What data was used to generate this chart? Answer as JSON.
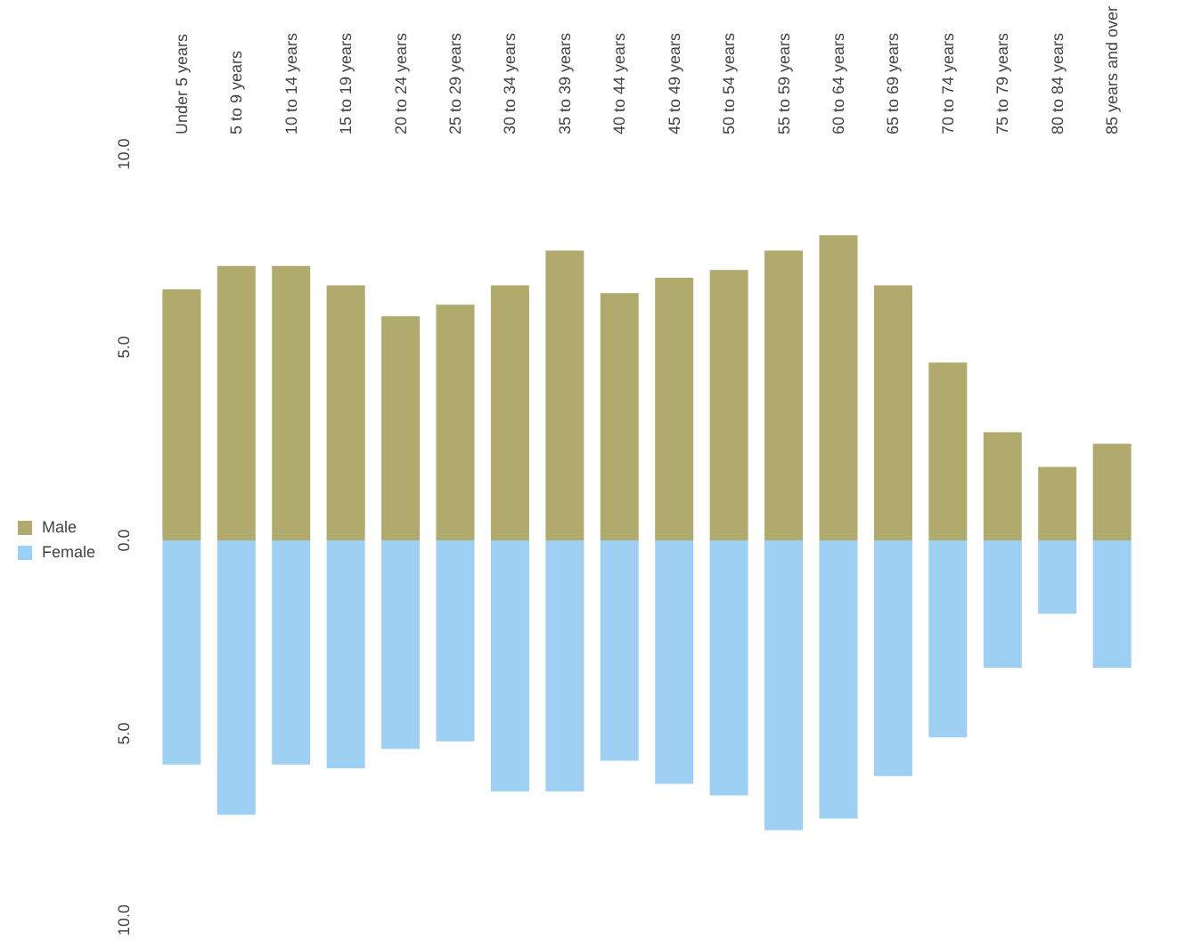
{
  "chart_data": {
    "type": "bar",
    "stacked": true,
    "categories": [
      "Under 5 years",
      "5 to 9 years",
      "10 to 14 years",
      "15 to 19 years",
      "20 to 24 years",
      "25 to 29 years",
      "30 to 34 years",
      "35 to 39 years",
      "40 to 44 years",
      "45 to 49 years",
      "50 to 54 years",
      "55 to 59 years",
      "60 to 64 years",
      "65 to 69 years",
      "70 to 74 years",
      "75 to 79 years",
      "80 to 84 years",
      "85 years and over"
    ],
    "series": [
      {
        "name": "Male",
        "color": "#b0aa6c",
        "values": [
          6.5,
          7.1,
          7.1,
          6.6,
          5.8,
          6.1,
          6.6,
          7.5,
          6.4,
          6.8,
          7.0,
          7.5,
          7.9,
          6.6,
          4.6,
          2.8,
          1.9,
          2.5
        ]
      },
      {
        "name": "Female",
        "color": "#9dd0f3",
        "values": [
          -5.8,
          -7.1,
          -5.8,
          -5.9,
          -5.4,
          -5.2,
          -6.5,
          -6.5,
          -5.7,
          -6.3,
          -6.6,
          -7.5,
          -7.2,
          -6.1,
          -5.1,
          -3.3,
          -1.9,
          -3.3
        ]
      }
    ],
    "ylim": [
      -10,
      10
    ],
    "yticks": [
      {
        "value": -10,
        "label": "10.0"
      },
      {
        "value": -5,
        "label": "5.0"
      },
      {
        "value": 0,
        "label": "0.0"
      },
      {
        "value": 5,
        "label": "5.0"
      },
      {
        "value": 10,
        "label": "10.0"
      }
    ],
    "legend": "left",
    "grid": false
  }
}
